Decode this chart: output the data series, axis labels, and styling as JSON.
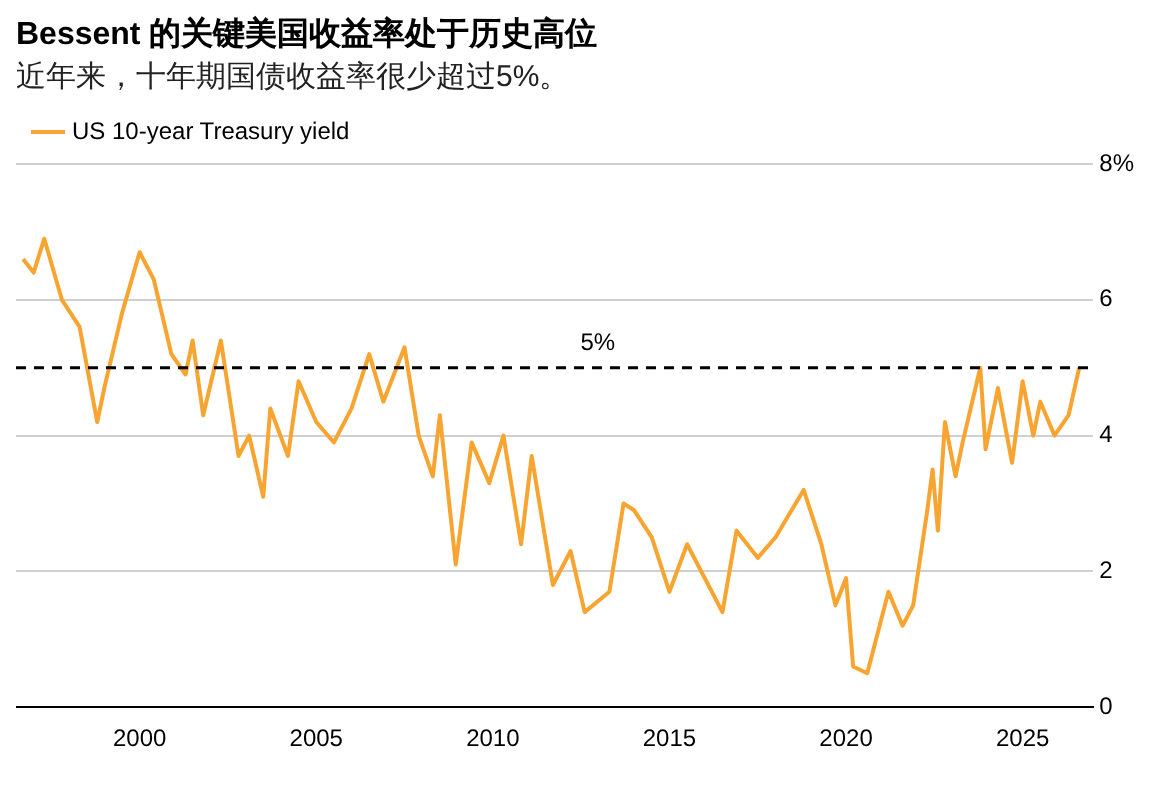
{
  "chart_data": {
    "type": "line",
    "title": "Bessent 的关键美国收益率处于历史高位",
    "subtitle": "近年来，十年期国债收益率很少超过5%。",
    "x": [
      1996.7,
      1997.0,
      1997.3,
      1997.8,
      1998.3,
      1998.8,
      1999.0,
      1999.5,
      2000.0,
      2000.4,
      2000.9,
      2001.3,
      2001.5,
      2001.8,
      2002.3,
      2002.8,
      2003.1,
      2003.5,
      2003.7,
      2004.2,
      2004.5,
      2005.0,
      2005.5,
      2006.0,
      2006.5,
      2006.9,
      2007.5,
      2007.9,
      2008.3,
      2008.5,
      2008.95,
      2009.4,
      2009.9,
      2010.3,
      2010.8,
      2011.1,
      2011.7,
      2012.2,
      2012.6,
      2013.3,
      2013.7,
      2014.0,
      2014.5,
      2015.0,
      2015.5,
      2016.5,
      2016.9,
      2017.5,
      2018.0,
      2018.8,
      2019.3,
      2019.7,
      2020.0,
      2020.2,
      2020.6,
      2021.2,
      2021.6,
      2021.9,
      2022.3,
      2022.45,
      2022.6,
      2022.8,
      2023.1,
      2023.3,
      2023.8,
      2023.95,
      2024.3,
      2024.7,
      2025.0,
      2025.3,
      2025.5,
      2025.9,
      2026.3,
      2026.6
    ],
    "series": [
      {
        "name": "US 10-year Treasury yield",
        "color": "#f7a431",
        "values": [
          6.6,
          6.4,
          6.9,
          6.0,
          5.6,
          4.2,
          4.7,
          5.8,
          6.7,
          6.3,
          5.2,
          4.9,
          5.4,
          4.3,
          5.4,
          3.7,
          4.0,
          3.1,
          4.4,
          3.7,
          4.8,
          4.2,
          3.9,
          4.4,
          5.2,
          4.5,
          5.3,
          4.0,
          3.4,
          4.3,
          2.1,
          3.9,
          3.3,
          4.0,
          2.4,
          3.7,
          1.8,
          2.3,
          1.4,
          1.7,
          3.0,
          2.9,
          2.5,
          1.7,
          2.4,
          1.4,
          2.6,
          2.2,
          2.5,
          3.2,
          2.4,
          1.5,
          1.9,
          0.6,
          0.5,
          1.7,
          1.2,
          1.5,
          2.9,
          3.5,
          2.6,
          4.2,
          3.4,
          3.9,
          5.0,
          3.8,
          4.7,
          3.6,
          4.8,
          4.0,
          4.5,
          4.0,
          4.3,
          5.0
        ]
      }
    ],
    "xlim": [
      1996.5,
      2027
    ],
    "xticks": [
      2000,
      2005,
      2010,
      2015,
      2020,
      2025
    ],
    "ylim": [
      0,
      8
    ],
    "yticks": [
      0,
      2,
      4,
      6,
      {
        "value": 8,
        "label": "8%"
      }
    ],
    "grid": "y",
    "legend": "top left",
    "marker": "none",
    "line_style": "solid",
    "ref_lines": [
      {
        "axis": "y",
        "value": 5,
        "label": "5%",
        "color": "#000000",
        "line_style": "dashed"
      }
    ]
  }
}
